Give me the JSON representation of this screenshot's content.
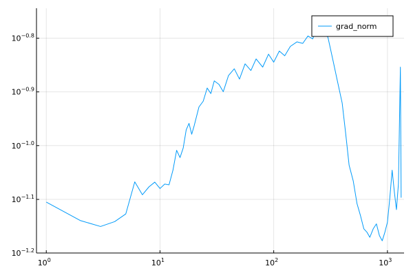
{
  "chart_data": {
    "type": "line",
    "title": "",
    "xlabel": "",
    "ylabel": "",
    "xscale": "log10",
    "yscale": "log10",
    "xlim": [
      0.82,
      1400
    ],
    "ylim": [
      0.0631,
      0.1802
    ],
    "grid": true,
    "legend_position": "top-right",
    "x_ticks": [
      {
        "base": "10",
        "exp": "0",
        "value": 1
      },
      {
        "base": "10",
        "exp": "1",
        "value": 10
      },
      {
        "base": "10",
        "exp": "2",
        "value": 100
      },
      {
        "base": "10",
        "exp": "3",
        "value": 1000
      }
    ],
    "y_ticks": [
      {
        "base": "10",
        "exp": "−1.2",
        "value": 0.0631
      },
      {
        "base": "10",
        "exp": "−1.1",
        "value": 0.0794
      },
      {
        "base": "10",
        "exp": "−1.0",
        "value": 0.1
      },
      {
        "base": "10",
        "exp": "−0.9",
        "value": 0.1259
      },
      {
        "base": "10",
        "exp": "−0.8",
        "value": 0.1585
      }
    ],
    "series": [
      {
        "name": "grad_norm",
        "color": "#009af9",
        "x": [
          1,
          2,
          3,
          4,
          5,
          6,
          7,
          8,
          9,
          10,
          11,
          12,
          13,
          14,
          15,
          16,
          17,
          18,
          19,
          20,
          22,
          24,
          26,
          28,
          30,
          33,
          36,
          40,
          45,
          50,
          56,
          63,
          70,
          80,
          90,
          100,
          112,
          125,
          140,
          160,
          180,
          200,
          220,
          250,
          280,
          300,
          330,
          360,
          400,
          430,
          460,
          500,
          540,
          580,
          620,
          660,
          700,
          750,
          800,
          850,
          900,
          950,
          1000,
          1050,
          1100,
          1150,
          1200,
          1250,
          1300,
          1320
        ],
        "values": [
          0.0785,
          0.0725,
          0.0707,
          0.0722,
          0.0746,
          0.0856,
          0.081,
          0.0838,
          0.0855,
          0.0832,
          0.0848,
          0.0845,
          0.09,
          0.098,
          0.095,
          0.099,
          0.107,
          0.11,
          0.105,
          0.109,
          0.118,
          0.121,
          0.128,
          0.125,
          0.132,
          0.13,
          0.126,
          0.135,
          0.139,
          0.133,
          0.142,
          0.138,
          0.145,
          0.14,
          0.148,
          0.143,
          0.15,
          0.147,
          0.153,
          0.156,
          0.155,
          0.16,
          0.158,
          0.168,
          0.162,
          0.159,
          0.145,
          0.133,
          0.12,
          0.105,
          0.092,
          0.086,
          0.078,
          0.074,
          0.07,
          0.069,
          0.0675,
          0.07,
          0.0715,
          0.068,
          0.0665,
          0.069,
          0.072,
          0.08,
          0.09,
          0.082,
          0.076,
          0.085,
          0.14,
          0.08
        ]
      }
    ]
  }
}
